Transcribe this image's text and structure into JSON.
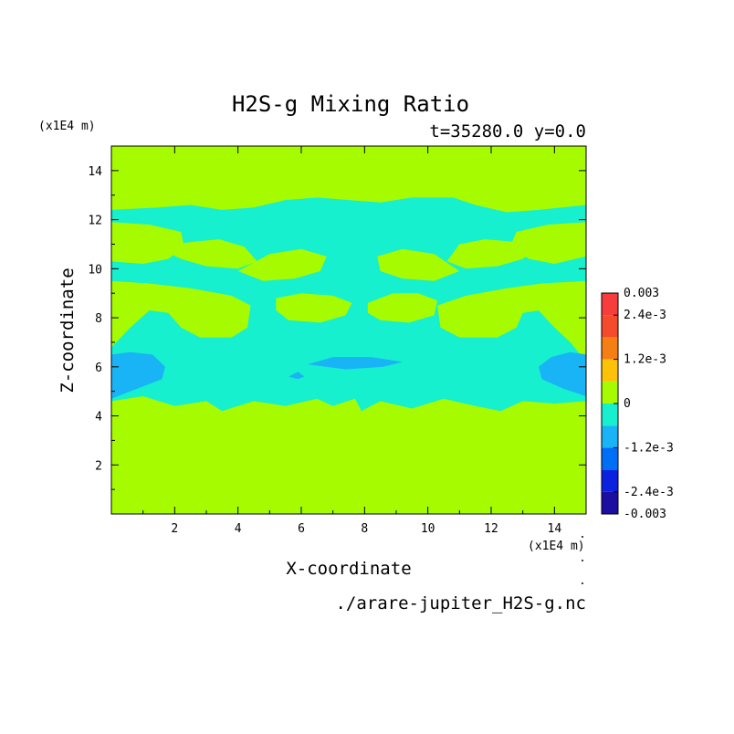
{
  "chart_data": {
    "type": "heatmap",
    "title": "H2S-g Mixing Ratio",
    "subtitle": "t=35280.0 y=0.0",
    "xlabel": "X-coordinate",
    "ylabel": "Z-coordinate",
    "x_unit": "(x1E4 m)",
    "y_unit": "(x1E4 m)",
    "source_file": "./arare-jupiter_H2S-g.nc",
    "xlim": [
      0,
      15
    ],
    "ylim": [
      0,
      15
    ],
    "x_ticks": [
      2,
      4,
      6,
      8,
      10,
      12,
      14
    ],
    "y_ticks": [
      2,
      4,
      6,
      8,
      10,
      12,
      14
    ],
    "background_color": "#a6fb00",
    "colorbar": {
      "vmin": -0.003,
      "vmax": 0.003,
      "levels": [
        {
          "from": -0.003,
          "to": -0.0024,
          "color": "#1b0fa2"
        },
        {
          "from": -0.0024,
          "to": -0.0018,
          "color": "#0a22e0"
        },
        {
          "from": -0.0018,
          "to": -0.0012,
          "color": "#006ef5"
        },
        {
          "from": -0.0012,
          "to": -0.0006,
          "color": "#18b4f5"
        },
        {
          "from": -0.0006,
          "to": 0,
          "color": "#16f0ce"
        },
        {
          "from": 0,
          "to": 0.0006,
          "color": "#a6fb00"
        },
        {
          "from": 0.0006,
          "to": 0.0012,
          "color": "#fcc20a"
        },
        {
          "from": 0.0012,
          "to": 0.0018,
          "color": "#f57f12"
        },
        {
          "from": 0.0018,
          "to": 0.0024,
          "color": "#f54a2b"
        },
        {
          "from": 0.0024,
          "to": 0.003,
          "color": "#f73c3c"
        }
      ],
      "tick_labels": [
        {
          "value": 0.003,
          "label": "0.003"
        },
        {
          "value": 0.0024,
          "label": "2.4e-3"
        },
        {
          "value": 0.0012,
          "label": "1.2e-3"
        },
        {
          "value": 0,
          "label": "0"
        },
        {
          "value": -0.0012,
          "label": "-1.2e-3"
        },
        {
          "value": -0.0024,
          "label": "-2.4e-3"
        },
        {
          "value": -0.003,
          "label": "-0.003"
        }
      ]
    },
    "regions": [
      {
        "level": "-0.0006..0",
        "color": "#16f0ce",
        "points": [
          [
            0,
            4.6
          ],
          [
            1,
            4.8
          ],
          [
            2,
            4.4
          ],
          [
            3,
            4.6
          ],
          [
            3.5,
            4.2
          ],
          [
            4.5,
            4.6
          ],
          [
            5.5,
            4.4
          ],
          [
            6.5,
            4.7
          ],
          [
            7,
            4.4
          ],
          [
            7.7,
            4.7
          ],
          [
            7.9,
            4.2
          ],
          [
            8.5,
            4.6
          ],
          [
            9.5,
            4.3
          ],
          [
            10.5,
            4.7
          ],
          [
            11.5,
            4.4
          ],
          [
            12.3,
            4.2
          ],
          [
            13,
            4.6
          ],
          [
            14,
            4.5
          ],
          [
            15,
            4.6
          ],
          [
            15,
            6.2
          ],
          [
            14.5,
            7.0
          ],
          [
            14.0,
            7.6
          ],
          [
            13.5,
            8.3
          ],
          [
            13.0,
            8.2
          ],
          [
            12.8,
            7.6
          ],
          [
            12.2,
            7.2
          ],
          [
            11.0,
            7.2
          ],
          [
            10.4,
            7.6
          ],
          [
            10.3,
            8.5
          ],
          [
            11.2,
            8.9
          ],
          [
            12.5,
            9.2
          ],
          [
            13.6,
            9.4
          ],
          [
            15,
            9.5
          ],
          [
            15,
            10.5
          ],
          [
            14.0,
            10.2
          ],
          [
            13.2,
            10.4
          ],
          [
            12.6,
            10.9
          ],
          [
            12.8,
            11.5
          ],
          [
            13.8,
            11.8
          ],
          [
            15,
            11.9
          ],
          [
            15,
            12.6
          ],
          [
            13.5,
            12.4
          ],
          [
            12.5,
            12.3
          ],
          [
            11.5,
            12.6
          ],
          [
            10.8,
            12.9
          ],
          [
            9.5,
            12.9
          ],
          [
            8.5,
            12.7
          ],
          [
            7.5,
            12.8
          ],
          [
            6.5,
            12.9
          ],
          [
            5.5,
            12.8
          ],
          [
            4.5,
            12.5
          ],
          [
            3.5,
            12.4
          ],
          [
            2.5,
            12.6
          ],
          [
            1.5,
            12.5
          ],
          [
            0,
            12.4
          ],
          [
            0,
            11.9
          ],
          [
            1.2,
            11.8
          ],
          [
            2.2,
            11.5
          ],
          [
            2.3,
            10.9
          ],
          [
            1.8,
            10.4
          ],
          [
            1.0,
            10.2
          ],
          [
            0,
            10.3
          ],
          [
            0,
            9.5
          ],
          [
            1.2,
            9.4
          ],
          [
            2.5,
            9.2
          ],
          [
            3.8,
            8.9
          ],
          [
            4.4,
            8.5
          ],
          [
            4.3,
            7.6
          ],
          [
            3.8,
            7.2
          ],
          [
            2.8,
            7.2
          ],
          [
            2.2,
            7.6
          ],
          [
            1.8,
            8.2
          ],
          [
            1.2,
            8.3
          ],
          [
            0.6,
            7.6
          ],
          [
            0,
            6.8
          ]
        ]
      },
      {
        "level": "0..0.0006",
        "color": "#a6fb00",
        "points": [
          [
            1.4,
            10.9
          ],
          [
            2.0,
            11.0
          ],
          [
            2.6,
            11.1
          ],
          [
            3.4,
            11.2
          ],
          [
            4.2,
            10.9
          ],
          [
            4.6,
            10.3
          ],
          [
            4.0,
            10.0
          ],
          [
            3.0,
            10.1
          ],
          [
            2.2,
            10.4
          ]
        ]
      },
      {
        "level": "0..0.0006",
        "color": "#a6fb00",
        "points": [
          [
            11.0,
            11.0
          ],
          [
            11.8,
            11.2
          ],
          [
            12.7,
            11.1
          ],
          [
            13.5,
            10.9
          ],
          [
            13.0,
            10.4
          ],
          [
            12.2,
            10.1
          ],
          [
            11.2,
            10.0
          ],
          [
            10.6,
            10.3
          ]
        ]
      },
      {
        "level": "0..0.0006",
        "color": "#a6fb00",
        "points": [
          [
            4.0,
            9.9
          ],
          [
            5.0,
            10.6
          ],
          [
            6.0,
            10.8
          ],
          [
            6.8,
            10.5
          ],
          [
            6.6,
            9.9
          ],
          [
            5.8,
            9.6
          ],
          [
            4.8,
            9.5
          ]
        ]
      },
      {
        "level": "0..0.0006",
        "color": "#a6fb00",
        "points": [
          [
            8.4,
            10.5
          ],
          [
            9.2,
            10.8
          ],
          [
            10.2,
            10.6
          ],
          [
            11.0,
            9.9
          ],
          [
            10.2,
            9.5
          ],
          [
            9.2,
            9.6
          ],
          [
            8.5,
            9.9
          ]
        ]
      },
      {
        "level": "0..0.0006",
        "color": "#a6fb00",
        "points": [
          [
            5.2,
            8.8
          ],
          [
            6.0,
            9.0
          ],
          [
            7.0,
            8.9
          ],
          [
            7.6,
            8.6
          ],
          [
            7.4,
            8.1
          ],
          [
            6.6,
            7.8
          ],
          [
            5.6,
            7.9
          ],
          [
            5.2,
            8.3
          ]
        ]
      },
      {
        "level": "0..0.0006",
        "color": "#a6fb00",
        "points": [
          [
            8.1,
            8.6
          ],
          [
            8.9,
            9.0
          ],
          [
            9.7,
            9.0
          ],
          [
            10.3,
            8.7
          ],
          [
            10.2,
            8.1
          ],
          [
            9.4,
            7.8
          ],
          [
            8.5,
            7.9
          ],
          [
            8.1,
            8.2
          ]
        ]
      },
      {
        "level": "0..0.0006",
        "color": "#a6fb00",
        "points": [
          [
            0,
            12.9
          ],
          [
            0.6,
            13.1
          ],
          [
            0.8,
            12.8
          ],
          [
            0.3,
            12.7
          ]
        ]
      },
      {
        "level": "-0.0012..-0.0006",
        "color": "#18b4f5",
        "points": [
          [
            0,
            4.7
          ],
          [
            0.8,
            5.1
          ],
          [
            1.6,
            5.5
          ],
          [
            1.7,
            6.0
          ],
          [
            1.3,
            6.5
          ],
          [
            0.6,
            6.6
          ],
          [
            0,
            6.5
          ]
        ]
      },
      {
        "level": "-0.0012..-0.0006",
        "color": "#18b4f5",
        "points": [
          [
            15,
            4.8
          ],
          [
            14.3,
            5.1
          ],
          [
            13.6,
            5.5
          ],
          [
            13.5,
            6.0
          ],
          [
            13.9,
            6.4
          ],
          [
            14.5,
            6.6
          ],
          [
            15,
            6.5
          ]
        ]
      },
      {
        "level": "-0.0012..-0.0006",
        "color": "#18b4f5",
        "points": [
          [
            6.2,
            6.1
          ],
          [
            7.0,
            6.4
          ],
          [
            8.2,
            6.4
          ],
          [
            9.2,
            6.2
          ],
          [
            8.6,
            6.0
          ],
          [
            7.4,
            5.9
          ]
        ]
      },
      {
        "level": "-0.0012..-0.0006",
        "color": "#18b4f5",
        "points": [
          [
            5.6,
            5.6
          ],
          [
            5.9,
            5.8
          ],
          [
            6.1,
            5.6
          ],
          [
            5.9,
            5.5
          ]
        ]
      }
    ]
  }
}
